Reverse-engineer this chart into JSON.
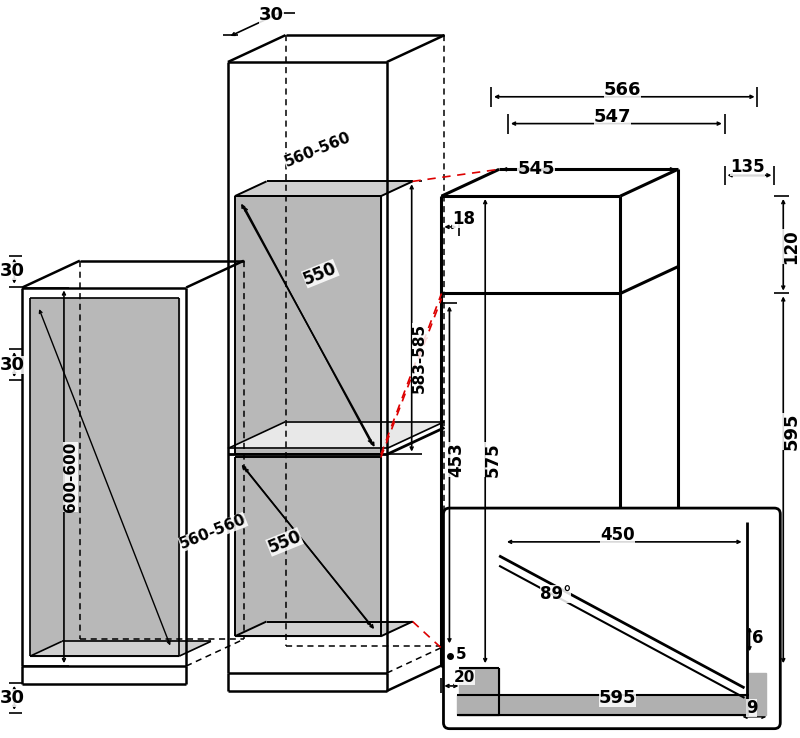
{
  "bg": "#ffffff",
  "lc": "#000000",
  "rc": "#dd0000",
  "gf": "#b8b8b8",
  "lgf": "#d0d0d0",
  "lw": 1.8,
  "dlw": 1.1,
  "fs": 12,
  "dims": {
    "top30": "30",
    "l30a": "30",
    "l30b": "30",
    "l30c": "30",
    "d583": "583-585",
    "d560t": "560-560",
    "d550t": "550",
    "d600": "600-600",
    "d560b": "560-560",
    "d550b": "550",
    "d566": "566",
    "d547": "547",
    "d545": "545",
    "d135": "135",
    "d18": "18",
    "d120": "120",
    "d595r": "595",
    "d453": "453",
    "d575": "575",
    "d5": "5",
    "d20": "20",
    "d595b": "595",
    "d450": "450",
    "d89": "89°",
    "d6": "6",
    "d9": "9"
  }
}
